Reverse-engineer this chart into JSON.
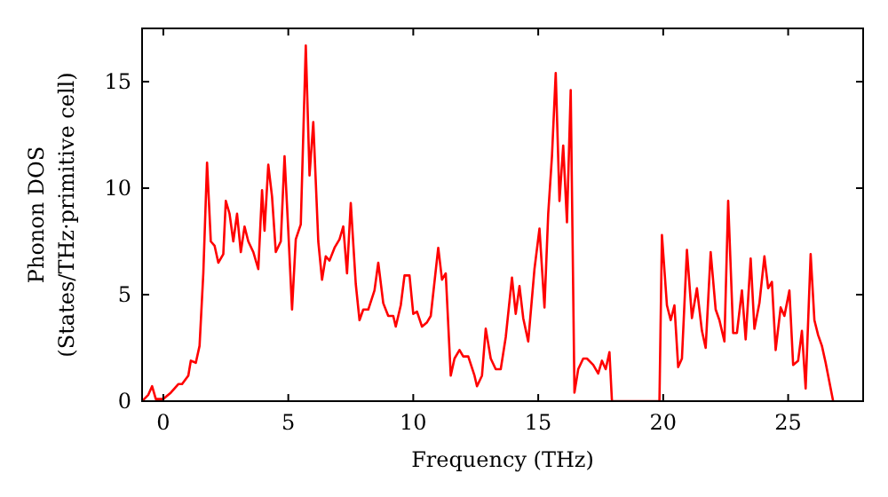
{
  "chart_data": {
    "type": "line",
    "xlabel": "Frequency (THz)",
    "ylabel": "Phonon DOS\n(States/THz·primitive cell)",
    "xlim": [
      -0.85,
      28
    ],
    "ylim": [
      0,
      17.5
    ],
    "xticks": [
      0,
      5,
      10,
      15,
      20,
      25
    ],
    "yticks": [
      0,
      5,
      10,
      15
    ],
    "grid": false,
    "marker": "none",
    "line_style": "solid",
    "series": [
      {
        "color": "#ff0000",
        "x": [
          -0.85,
          -0.6,
          -0.45,
          -0.3,
          0,
          0.3,
          0.6,
          0.75,
          1.0,
          1.1,
          1.3,
          1.45,
          1.6,
          1.75,
          1.9,
          2.05,
          2.2,
          2.4,
          2.5,
          2.65,
          2.8,
          2.95,
          3.1,
          3.25,
          3.4,
          3.6,
          3.8,
          3.95,
          4.05,
          4.2,
          4.35,
          4.5,
          4.7,
          4.85,
          5.0,
          5.15,
          5.3,
          5.5,
          5.7,
          5.85,
          6.0,
          6.2,
          6.35,
          6.5,
          6.65,
          6.85,
          7.05,
          7.2,
          7.35,
          7.5,
          7.7,
          7.85,
          8.0,
          8.2,
          8.45,
          8.6,
          8.8,
          9.0,
          9.2,
          9.3,
          9.5,
          9.65,
          9.85,
          10.0,
          10.15,
          10.35,
          10.55,
          10.7,
          11.0,
          11.15,
          11.3,
          11.5,
          11.65,
          11.85,
          12.0,
          12.2,
          12.45,
          12.55,
          12.75,
          12.9,
          13.1,
          13.3,
          13.5,
          13.7,
          13.95,
          14.1,
          14.25,
          14.4,
          14.6,
          14.85,
          15.05,
          15.25,
          15.4,
          15.55,
          15.7,
          15.85,
          16.0,
          16.15,
          16.3,
          16.45,
          16.6,
          16.8,
          16.95,
          17.2,
          17.4,
          17.55,
          17.7,
          17.85,
          17.95,
          19.85,
          19.95,
          20.15,
          20.3,
          20.45,
          20.6,
          20.75,
          20.95,
          21.15,
          21.35,
          21.55,
          21.7,
          21.9,
          22.1,
          22.25,
          22.45,
          22.6,
          22.8,
          22.95,
          23.15,
          23.3,
          23.5,
          23.65,
          23.85,
          24.05,
          24.2,
          24.35,
          24.5,
          24.7,
          24.85,
          25.05,
          25.2,
          25.4,
          25.55,
          25.7,
          25.9,
          26.05,
          26.2,
          26.35,
          26.5,
          26.8
        ],
        "values": [
          0,
          0.3,
          0.7,
          0.1,
          0.1,
          0.4,
          0.8,
          0.8,
          1.2,
          1.9,
          1.8,
          2.6,
          6,
          11.2,
          7.5,
          7.3,
          6.5,
          6.9,
          9.4,
          8.8,
          7.5,
          8.8,
          7.0,
          8.2,
          7.5,
          7.0,
          6.2,
          9.9,
          8.0,
          11.1,
          9.6,
          7.0,
          7.5,
          11.5,
          8,
          4.3,
          7.6,
          8.3,
          16.7,
          10.6,
          13.1,
          7.5,
          5.7,
          6.8,
          6.6,
          7.2,
          7.6,
          8.2,
          6.0,
          9.3,
          5.5,
          3.8,
          4.3,
          4.3,
          5.2,
          6.5,
          4.6,
          4.0,
          4.0,
          3.5,
          4.5,
          5.9,
          5.9,
          4.1,
          4.2,
          3.5,
          3.7,
          4.0,
          7.2,
          5.7,
          6.0,
          1.2,
          2.0,
          2.4,
          2.1,
          2.1,
          1.2,
          0.7,
          1.2,
          3.4,
          2.0,
          1.5,
          1.5,
          3.0,
          5.8,
          4.1,
          5.4,
          3.9,
          2.8,
          6.2,
          8.1,
          4.4,
          8.8,
          11.5,
          15.4,
          9.4,
          12.0,
          8.4,
          14.6,
          0.4,
          1.5,
          2.0,
          2.0,
          1.7,
          1.3,
          1.9,
          1.5,
          2.3,
          0,
          0,
          7.8,
          4.5,
          3.8,
          4.5,
          1.6,
          2.0,
          7.1,
          3.9,
          5.3,
          3.3,
          2.5,
          7.0,
          4.3,
          3.8,
          2.8,
          9.4,
          3.2,
          3.2,
          5.2,
          2.9,
          6.7,
          3.4,
          4.6,
          6.8,
          5.3,
          5.6,
          2.4,
          4.4,
          4.0,
          5.2,
          1.7,
          1.9,
          3.3,
          0.6,
          6.9,
          3.8,
          3.1,
          2.6,
          1.8,
          0
        ]
      }
    ]
  }
}
